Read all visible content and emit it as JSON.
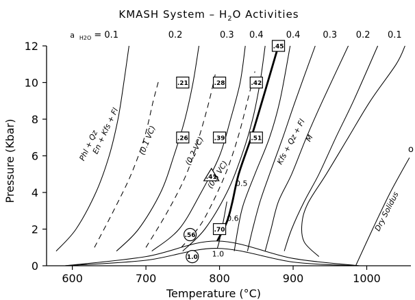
{
  "chart_data": {
    "type": "line",
    "title": "KMASH System – H₂O Activities",
    "xlabel": "Temperature (°C)",
    "ylabel": "Pressure (Kbar)",
    "xlim": [
      565,
      1060
    ],
    "ylim": [
      0,
      12
    ],
    "x_ticks": [
      600,
      700,
      800,
      900,
      1000
    ],
    "y_ticks": [
      0,
      2,
      4,
      6,
      8,
      10,
      12
    ],
    "grid": false,
    "legend": "none",
    "top_labels": [
      {
        "text": "a",
        "x": 600
      },
      {
        "text": "H2O = 0.1",
        "x": 630
      },
      {
        "text": "0.2",
        "x": 740
      },
      {
        "text": "0.3",
        "x": 810
      },
      {
        "text": "0.4",
        "x": 850
      },
      {
        "text": "0.4",
        "x": 900
      },
      {
        "text": "0.3",
        "x": 950
      },
      {
        "text": "0.2",
        "x": 995
      },
      {
        "text": "0.1",
        "x": 1038
      }
    ],
    "series": [
      {
        "style": "solid",
        "points": [
          [
            578,
            0.8
          ],
          [
            605,
            2
          ],
          [
            632,
            4
          ],
          [
            650,
            6
          ],
          [
            662,
            8
          ],
          [
            670,
            10
          ],
          [
            677,
            12
          ]
        ]
      },
      {
        "style": "dashed",
        "points": [
          [
            630,
            1
          ],
          [
            656,
            3
          ],
          [
            680,
            5
          ],
          [
            698,
            7
          ],
          [
            710,
            9
          ],
          [
            718,
            10.2
          ]
        ]
      },
      {
        "style": "solid",
        "points": [
          [
            660,
            0.8
          ],
          [
            690,
            2
          ],
          [
            720,
            4
          ],
          [
            738,
            6
          ],
          [
            753,
            8
          ],
          [
            764,
            10
          ],
          [
            772,
            12
          ]
        ]
      },
      {
        "style": "dashed",
        "points": [
          [
            700,
            1
          ],
          [
            730,
            3
          ],
          [
            755,
            5
          ],
          [
            772,
            7
          ],
          [
            786,
            9
          ],
          [
            795,
            10.6
          ]
        ]
      },
      {
        "style": "solid",
        "points": [
          [
            708,
            0.8
          ],
          [
            745,
            2
          ],
          [
            775,
            4
          ],
          [
            800,
            6
          ],
          [
            815,
            8
          ],
          [
            828,
            10
          ],
          [
            835,
            12
          ]
        ]
      },
      {
        "style": "dashed",
        "points": [
          [
            748,
            1
          ],
          [
            770,
            2
          ],
          [
            785,
            3
          ],
          [
            808,
            5
          ],
          [
            825,
            7
          ],
          [
            838,
            9
          ],
          [
            848,
            10.6
          ]
        ]
      },
      {
        "style": "solid",
        "points": [
          [
            750,
            0.8
          ],
          [
            780,
            2
          ],
          [
            810,
            4
          ],
          [
            830,
            6
          ],
          [
            845,
            8
          ],
          [
            855,
            10
          ],
          [
            862,
            12
          ]
        ]
      },
      {
        "style": "thick",
        "points": [
          [
            797,
            1.35
          ],
          [
            810,
            2.4
          ],
          [
            817,
            3.4
          ],
          [
            826,
            5
          ],
          [
            843,
            7
          ],
          [
            858,
            9
          ],
          [
            880,
            12
          ]
        ]
      },
      {
        "style": "solid",
        "points": [
          [
            797,
            0.95
          ],
          [
            800,
            1.4
          ],
          [
            806,
            2.6
          ],
          [
            810,
            3.5
          ]
        ]
      },
      {
        "style": "solid",
        "points": [
          [
            820,
            0.8
          ],
          [
            825,
            2
          ],
          [
            832,
            3.3
          ],
          [
            848,
            5
          ],
          [
            868,
            7
          ],
          [
            882,
            9
          ],
          [
            896,
            12
          ]
        ]
      },
      {
        "style": "solid",
        "points": [
          [
            838,
            0.8
          ],
          [
            845,
            2
          ],
          [
            855,
            3.5
          ],
          [
            868,
            5
          ],
          [
            886,
            7
          ],
          [
            903,
            9
          ],
          [
            930,
            12
          ]
        ]
      },
      {
        "style": "solid",
        "points": [
          [
            862,
            0.8
          ],
          [
            870,
            2
          ],
          [
            880,
            3.5
          ],
          [
            898,
            5
          ],
          [
            918,
            7
          ],
          [
            940,
            9
          ],
          [
            975,
            12
          ]
        ]
      },
      {
        "style": "solid",
        "points": [
          [
            888,
            0.8
          ],
          [
            898,
            2
          ],
          [
            915,
            3.5
          ],
          [
            935,
            5
          ],
          [
            958,
            7
          ],
          [
            982,
            9
          ],
          [
            1015,
            12
          ]
        ]
      },
      {
        "style": "solid",
        "points": [
          [
            935,
            0.5
          ],
          [
            915,
            1.3
          ],
          [
            912,
            2.3
          ],
          [
            920,
            3.4
          ],
          [
            945,
            5
          ],
          [
            975,
            7
          ],
          [
            1005,
            9
          ],
          [
            1040,
            11
          ],
          [
            1052,
            12
          ]
        ]
      },
      {
        "style": "solid",
        "points": [
          [
            985,
            0
          ],
          [
            1008,
            2
          ],
          [
            1032,
            4
          ],
          [
            1058,
            5.9
          ]
        ]
      },
      {
        "style": "solid",
        "points": [
          [
            590,
            0
          ],
          [
            700,
            0.3
          ],
          [
            797,
            0.95
          ],
          [
            900,
            0.2
          ],
          [
            990,
            0
          ]
        ]
      },
      {
        "style": "solid",
        "points": [
          [
            590,
            0
          ],
          [
            700,
            0.5
          ],
          [
            797,
            1.35
          ],
          [
            900,
            0.4
          ],
          [
            990,
            0
          ]
        ]
      }
    ],
    "square_markers": [
      {
        "label": ".21",
        "x": 750,
        "y": 10
      },
      {
        "label": ".28",
        "x": 800,
        "y": 10
      },
      {
        "label": ".42",
        "x": 850,
        "y": 10
      },
      {
        "label": ".26",
        "x": 750,
        "y": 7
      },
      {
        "label": ".39",
        "x": 800,
        "y": 7
      },
      {
        "label": ".51",
        "x": 850,
        "y": 7
      },
      {
        "label": ".45",
        "x": 880,
        "y": 12
      },
      {
        "label": ".70",
        "x": 800,
        "y": 2
      }
    ],
    "circle_markers": [
      {
        "label": ".56",
        "x": 760,
        "y": 1.7
      },
      {
        "label": "1.0",
        "x": 763,
        "y": 0.5
      }
    ],
    "triangle_markers": [
      {
        "label": ".41",
        "x": 789,
        "y": 4.9
      }
    ],
    "annotations": [
      {
        "text": "0.5",
        "x": 830,
        "y": 4.5
      },
      {
        "text": "0.6",
        "x": 818,
        "y": 2.6
      },
      {
        "text": "1.0",
        "x": 798,
        "y": 0.65
      }
    ],
    "rotated_labels": [
      {
        "text": "Phl + Qz",
        "x": 625,
        "y": 6.5,
        "angle": -65
      },
      {
        "text": "En + Kfs + Fl",
        "x": 648,
        "y": 7.3,
        "angle": -65
      },
      {
        "text": "(0.1 VC)",
        "x": 705,
        "y": 6.8,
        "angle": -68
      },
      {
        "text": "(0.2 VC)",
        "x": 769,
        "y": 6.2,
        "angle": -63
      },
      {
        "text": "(0.3 VC)",
        "x": 800,
        "y": 4.9,
        "angle": -58
      },
      {
        "text": "Kfs + Qz + Fl",
        "x": 900,
        "y": 6.7,
        "angle": -62
      },
      {
        "text": "M",
        "x": 925,
        "y": 6.9,
        "angle": -62
      },
      {
        "text": "Dry  Solidus",
        "x": 1030,
        "y": 2.9,
        "angle": -63
      }
    ],
    "edge_label": {
      "text": "o",
      "x": 1060,
      "y": 6.2
    }
  }
}
